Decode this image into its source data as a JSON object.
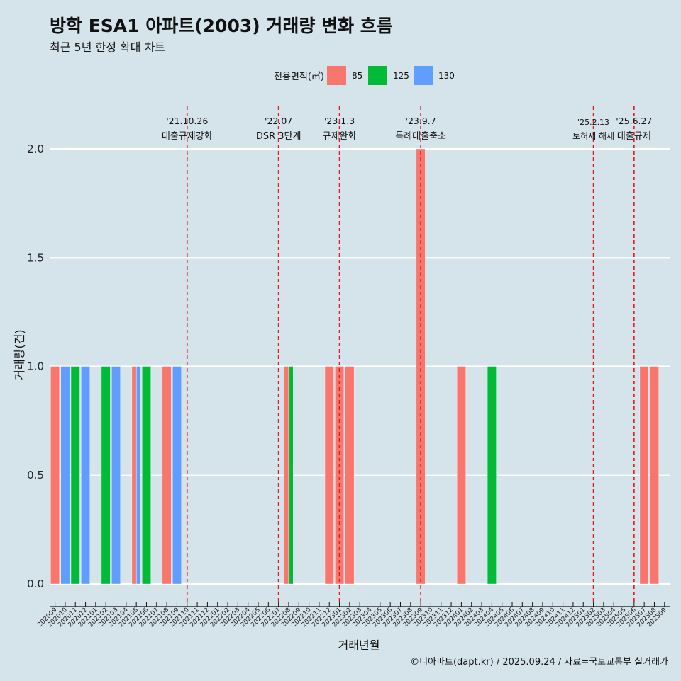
{
  "chart_data": {
    "type": "bar",
    "title": "방학 ESA1 아파트(2003) 거래량 변화 흐름",
    "subtitle": "최근 5년 한정 확대 차트",
    "xlabel": "거래년월",
    "ylabel": "거래량(건)",
    "ylim": [
      0,
      2.15
    ],
    "yticks": [
      "0.0",
      "0.5",
      "1.0",
      "1.5",
      "2.0"
    ],
    "legend": {
      "title": "전용면적(㎡)",
      "position": "top"
    },
    "categories": [
      "202009",
      "202010",
      "202011",
      "202012",
      "202101",
      "202102",
      "202103",
      "202104",
      "202105",
      "202106",
      "202107",
      "202108",
      "202109",
      "202110",
      "202111",
      "202112",
      "202201",
      "202202",
      "202203",
      "202204",
      "202205",
      "202206",
      "202207",
      "202208",
      "202209",
      "202210",
      "202211",
      "202212",
      "202301",
      "202302",
      "202303",
      "202304",
      "202305",
      "202306",
      "202307",
      "202308",
      "202309",
      "202310",
      "202311",
      "202312",
      "202401",
      "202402",
      "202403",
      "202404",
      "202405",
      "202406",
      "202407",
      "202408",
      "202409",
      "202410",
      "202411",
      "202412",
      "202501",
      "202502",
      "202503",
      "202504",
      "202505",
      "202506",
      "202507",
      "202508",
      "202509"
    ],
    "series": [
      {
        "name": "85",
        "color": "#f8766d",
        "values": [
          1,
          0,
          0,
          0,
          0,
          0,
          0,
          0,
          1,
          0,
          0,
          1,
          0,
          0,
          0,
          0,
          0,
          0,
          0,
          0,
          0,
          0,
          0,
          1,
          0,
          0,
          0,
          1,
          1,
          1,
          0,
          0,
          0,
          0,
          0,
          0,
          2,
          0,
          0,
          0,
          1,
          0,
          0,
          0,
          0,
          0,
          0,
          0,
          0,
          0,
          0,
          0,
          0,
          0,
          0,
          0,
          0,
          0,
          1,
          1,
          0
        ]
      },
      {
        "name": "125",
        "color": "#00ba38",
        "values": [
          0,
          0,
          1,
          0,
          0,
          1,
          0,
          0,
          0,
          1,
          0,
          0,
          0,
          0,
          0,
          0,
          0,
          0,
          0,
          0,
          0,
          0,
          0,
          1,
          0,
          0,
          0,
          0,
          0,
          0,
          0,
          0,
          0,
          0,
          0,
          0,
          0,
          0,
          0,
          0,
          0,
          0,
          0,
          1,
          0,
          0,
          0,
          0,
          0,
          0,
          0,
          0,
          0,
          0,
          0,
          0,
          0,
          0,
          0,
          0,
          0
        ]
      },
      {
        "name": "130",
        "color": "#619cff",
        "values": [
          0,
          1,
          0,
          1,
          0,
          0,
          1,
          0,
          1,
          0,
          0,
          0,
          1,
          0,
          0,
          0,
          0,
          0,
          0,
          0,
          0,
          0,
          0,
          0,
          0,
          0,
          0,
          0,
          0,
          0,
          0,
          0,
          0,
          0,
          0,
          0,
          0,
          0,
          0,
          0,
          0,
          0,
          0,
          0,
          0,
          0,
          0,
          0,
          0,
          0,
          0,
          0,
          0,
          0,
          0,
          0,
          0,
          0,
          0,
          0,
          0
        ]
      }
    ],
    "annotations": [
      {
        "date": "'21.10.26",
        "label": "대출규제강화",
        "x": "202110"
      },
      {
        "date": "'22.07",
        "label": "DSR 3단계",
        "x": "202207"
      },
      {
        "date": "'23.1.3",
        "label": "규제완화",
        "x": "202301"
      },
      {
        "date": "'23.9.7",
        "label": "특례대출축소",
        "x": "202309"
      },
      {
        "date": "'25.2.13",
        "label": "토허제 해제",
        "x": "202502"
      },
      {
        "date": "'25.6.27",
        "label": "대출규제",
        "x": "202506"
      }
    ],
    "grid": true
  },
  "caption": "©디아파트(dapt.kr) / 2025.09.24 / 자료=국토교통부 실거래가"
}
